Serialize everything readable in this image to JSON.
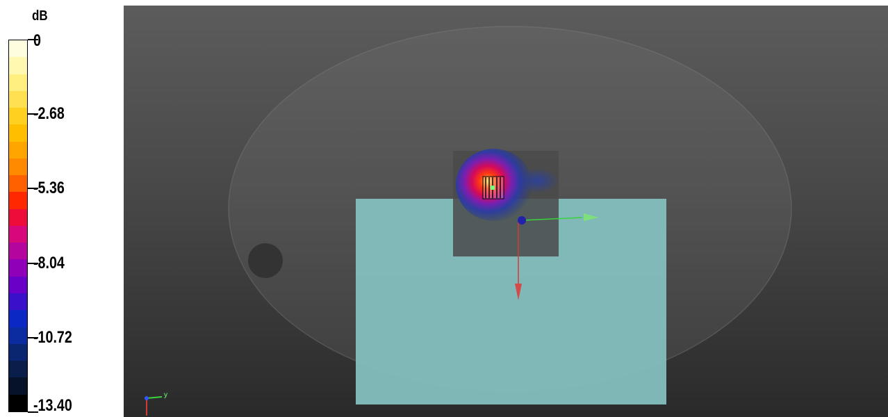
{
  "legend": {
    "unit": "dB",
    "ticks": [
      {
        "label": "0",
        "value": 0
      },
      {
        "label": "-2.68",
        "value": -2.68
      },
      {
        "label": "-5.36",
        "value": -5.36
      },
      {
        "label": "-8.04",
        "value": -8.04
      },
      {
        "label": "-10.72",
        "value": -10.72
      },
      {
        "label": "-13.40",
        "value": -13.4
      }
    ],
    "min": -13.4,
    "max": 0,
    "colors": [
      "#fffde0",
      "#fff8b0",
      "#ffee80",
      "#ffe050",
      "#ffd020",
      "#ffbf00",
      "#ffa500",
      "#ff8a00",
      "#ff6000",
      "#ff2800",
      "#ee0c3a",
      "#d6087a",
      "#b4069e",
      "#9000b8",
      "#6a00c8",
      "#3a10c8",
      "#0c28c4",
      "#0a2ca0",
      "#0a2670",
      "#0a1e4c",
      "#061228",
      "#000000"
    ]
  },
  "viewport": {
    "scene": "3D field view",
    "axis_triad_label": "y"
  }
}
